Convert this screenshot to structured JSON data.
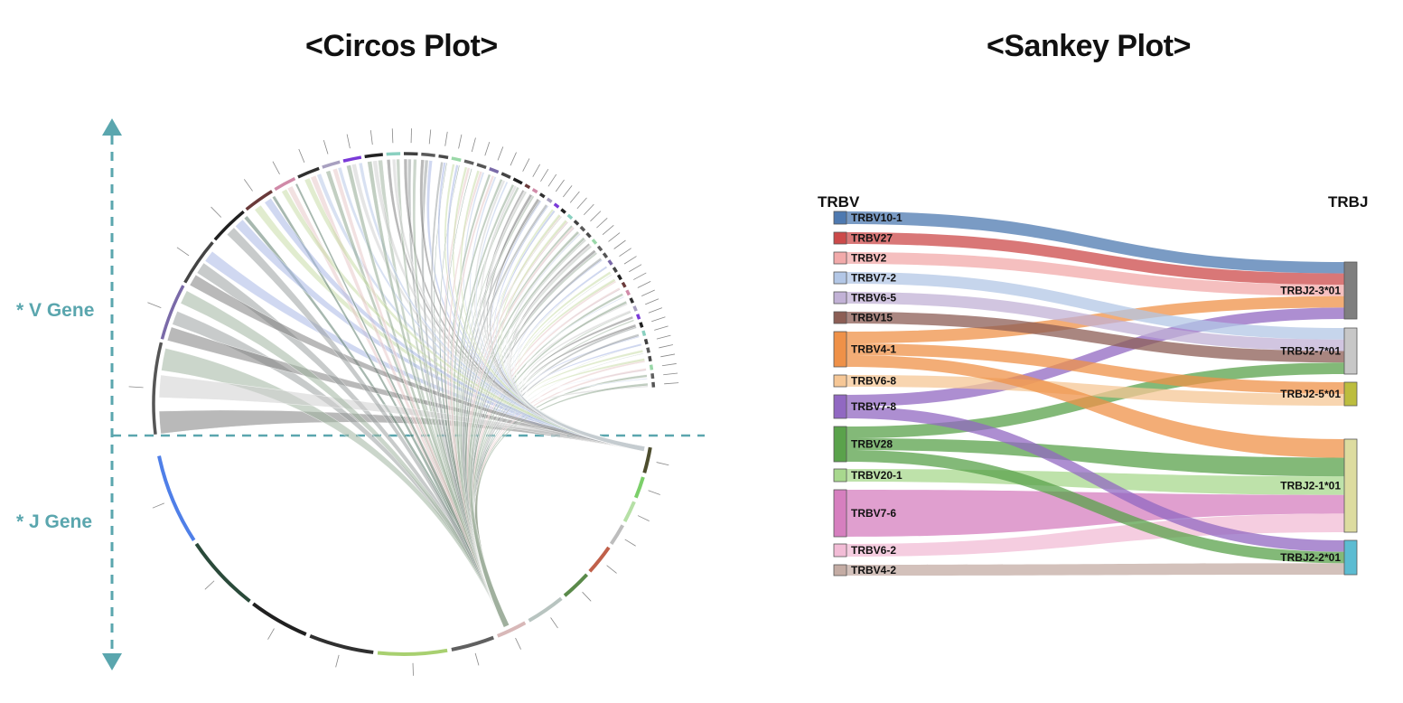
{
  "titles": {
    "circos": "<Circos Plot>",
    "sankey": "<Sankey Plot>"
  },
  "axis_labels": {
    "v_gene": "* V Gene",
    "j_gene": "* J Gene"
  },
  "colors": {
    "axis": "#5aa6ae"
  },
  "sankey": {
    "left_header": "TRBV",
    "right_header": "TRBJ",
    "left_nodes": [
      {
        "label": "TRBV10-1",
        "color": "#4e79b0"
      },
      {
        "label": "TRBV27",
        "color": "#cc4a4a"
      },
      {
        "label": "TRBV2",
        "color": "#f2aaaa"
      },
      {
        "label": "TRBV7-2",
        "color": "#b3c7e6"
      },
      {
        "label": "TRBV6-5",
        "color": "#c2b2d6"
      },
      {
        "label": "TRBV15",
        "color": "#8c5e55"
      },
      {
        "label": "TRBV4-1",
        "color": "#ef9148"
      },
      {
        "label": "TRBV6-8",
        "color": "#f6c796"
      },
      {
        "label": "TRBV7-8",
        "color": "#9168c2"
      },
      {
        "label": "TRBV28",
        "color": "#5aa24b"
      },
      {
        "label": "TRBV20-1",
        "color": "#a8d88e"
      },
      {
        "label": "TRBV7-6",
        "color": "#d67fbf"
      },
      {
        "label": "TRBV6-2",
        "color": "#f2bcd6"
      },
      {
        "label": "TRBV4-2",
        "color": "#c4aca4"
      }
    ],
    "right_nodes": [
      {
        "label": "TRBJ2-3*01",
        "color": "#7f7f7f"
      },
      {
        "label": "TRBJ2-7*01",
        "color": "#c7c7c7"
      },
      {
        "label": "TRBJ2-5*01",
        "color": "#bcbd3e"
      },
      {
        "label": "TRBJ2-1*01",
        "color": "#dddca0"
      },
      {
        "label": "TRBJ2-2*01",
        "color": "#5cbcd2"
      }
    ]
  }
}
